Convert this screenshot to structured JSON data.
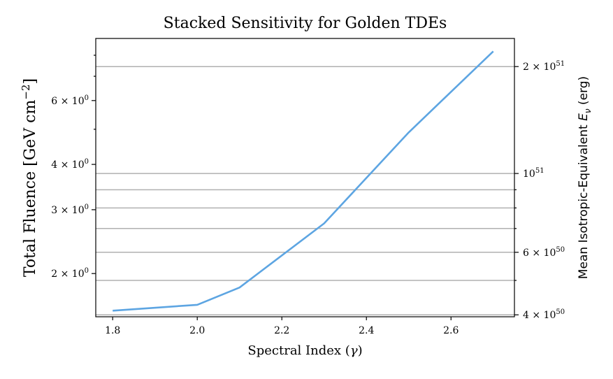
{
  "chart_data": {
    "type": "line",
    "title": "Stacked Sensitivity for Golden TDEs",
    "xlabel": "Spectral Index (γ)",
    "ylabel": "Total Fluence [GeV cm⁻²]",
    "ylabel_right": "Mean Isotropic-Equivalent E_ν (erg)",
    "xlim": [
      1.76,
      2.75
    ],
    "ylim": [
      1.52,
      8.9
    ],
    "yscale": "log",
    "ylim_right": [
      3.95e+50,
      2.4e+51
    ],
    "yscale_right": "log",
    "grid": "horizontal lines at right-axis ticks",
    "x_ticks": [
      "1.8",
      "2.0",
      "2.2",
      "2.4",
      "2.6"
    ],
    "x_tick_values": [
      1.8,
      2.0,
      2.2,
      2.4,
      2.6
    ],
    "y_ticks": [
      {
        "value": 2,
        "mantissa": "2",
        "exp": "0"
      },
      {
        "value": 3,
        "mantissa": "3",
        "exp": "0"
      },
      {
        "value": 4,
        "mantissa": "4",
        "exp": "0"
      },
      {
        "value": 6,
        "mantissa": "6",
        "exp": "0"
      }
    ],
    "y_ticks_right": [
      {
        "value": 4e+50,
        "mantissa": "4",
        "exp": "50"
      },
      {
        "value": 6e+50,
        "mantissa": "6",
        "exp": "50"
      },
      {
        "value": 1e+51,
        "mantissa": "",
        "exp": "51"
      },
      {
        "value": 2e+51,
        "mantissa": "2",
        "exp": "51"
      }
    ],
    "y_minor_right": [
      5e+50,
      7e+50,
      8e+50,
      9e+50
    ],
    "series": [
      {
        "color": "#5da5e2",
        "x": [
          1.8,
          2.0,
          2.1,
          2.3,
          2.5,
          2.7
        ],
        "y": [
          1.58,
          1.64,
          1.83,
          2.75,
          4.9,
          8.2
        ]
      }
    ]
  }
}
